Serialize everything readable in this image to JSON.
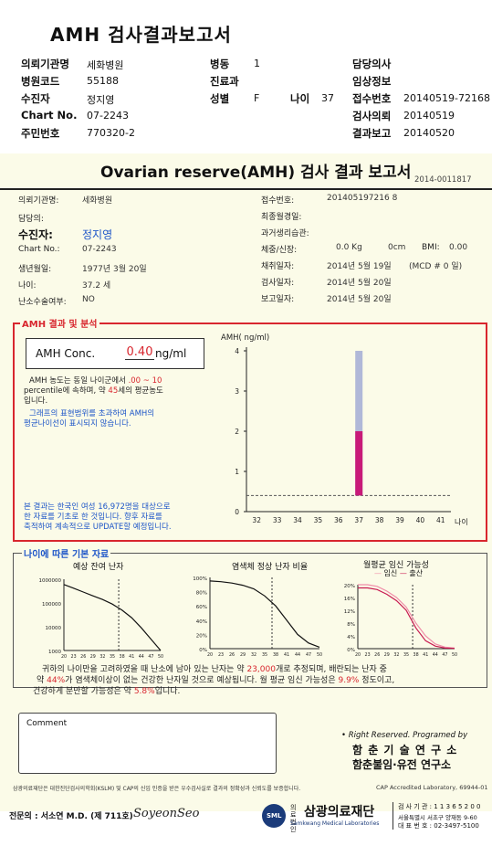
{
  "header": {
    "title": "AMH 검사결과보고서",
    "rows": [
      [
        {
          "l": "의뢰기관명",
          "v": "세화병원"
        },
        {
          "l": "병동",
          "v": "1"
        },
        {
          "l": "담당의사",
          "v": ""
        }
      ],
      [
        {
          "l": "병원코드",
          "v": "55188"
        },
        {
          "l": "진료과",
          "v": ""
        },
        {
          "l": "임상정보",
          "v": ""
        }
      ],
      [
        {
          "l": "수진자",
          "v": "정지영"
        },
        {
          "l": "성별",
          "v": "F"
        },
        {
          "l": "나이",
          "v": "37"
        },
        {
          "l": "접수번호",
          "v": "20140519-72168"
        }
      ],
      [
        {
          "l": "Chart No.",
          "v": "07-2243"
        },
        {
          "l": "검사의뢰",
          "v": "20140519"
        }
      ],
      [
        {
          "l": "주민번호",
          "v": "770320-2"
        },
        {
          "l": "결과보고",
          "v": "20140520"
        }
      ]
    ]
  },
  "report": {
    "title": "Ovarian reserve(AMH) 검사 결과 보고서",
    "number": "2014-0011817",
    "patient": {
      "hospital_label": "의뢰기관명:",
      "hospital": "세화병원",
      "doctor_label": "담당의:",
      "name_label": "수진자:",
      "name": "정지영",
      "chart_label": "Chart No.:",
      "chart": "07-2243",
      "dob_label": "생년월일:",
      "dob": "1977년 3월 20일",
      "age_label": "나이:",
      "age": "37.2 세",
      "ovary_label": "난소수술여부:",
      "ovary": "NO",
      "receipt_label": "접수번호:",
      "receipt": "201405197216 8",
      "lastmens_label": "최종월경일:",
      "pastmens_label": "과거생리습관:",
      "weight_label": "체중/신장:",
      "weight": "0.0 Kg",
      "height": "0cm",
      "bmi_label": "BMI:",
      "bmi": "0.00",
      "collect_label": "채취일자:",
      "collect": "2014년 5월 19일",
      "mcd": "(MCD # 0 일)",
      "test_label": "검사일자:",
      "test": "2014년 5월 20일",
      "report_label": "보고일자:",
      "report": "2014년 5월 20일"
    },
    "amh_section": {
      "heading": "AMH 결과 및 분석",
      "conc_label": "AMH Conc.",
      "conc_value": "0.40",
      "conc_unit": "ng/ml",
      "note1_a": "AMH 농도는 동일 나이군에서",
      "note1_range": ".00 ~ 10",
      "note1_b": "percentile에 속하며, 약",
      "note1_age": "45",
      "note1_c": "세의 평균농도",
      "note1_d": "입니다.",
      "note2_a": "그래프의 표현범위를 초과하여 AMH의",
      "note2_b": "평균나이선이 표시되지 않습니다.",
      "note3_a": "본 결과는 한국인 여성 16,972명을 대상으로",
      "note3_b": "한 자료를 기초로 한 것입니다. 향후 자료를",
      "note3_c": "축적하여 계속적으로 UPDATE할 예정입니다."
    },
    "basic_section": {
      "heading": "나이에 따른 기본 자료",
      "chart1_title": "예상 잔여 난자",
      "chart2_title": "염색체 정상 난자 비율",
      "chart3_title": "월평균 임신 가능성",
      "chart3_legend_a": "임신",
      "chart3_legend_b": "출산",
      "summary1_a": "귀하의 나이만을 고려하였을 때 난소에 남아 있는 난자는 약",
      "summary1_eggs": "23,000",
      "summary1_b": "개로 추정되며, 배란되는 난자 중",
      "summary2_a": "약",
      "summary2_pct": "44%",
      "summary2_b": "가 염색체이상이 없는 건강한 난자일 것으로 예상됩니다. 월 평균 임신 가능성은",
      "summary2_preg": "9.9%",
      "summary2_c": "정도이고,",
      "summary3_a": "건강하게 분만할 가능성은 약",
      "summary3_birth": "5.8%",
      "summary3_b": "입니다."
    },
    "comment_label": "Comment",
    "rights": "• Right Reserved. Programed by",
    "org1": "함 춘 기 술 연 구 소",
    "org2": "함춘불임·유전 연구소",
    "cert_note": "삼광의료재단은 대한진단검사의학회(KSLM) 및 CAP의 신임 인증을 받은 우수검사실로 결과의 정확성과 신뢰도를 보증합니다.",
    "cap": "CAP  Accredited  Laboratory,  69944-01"
  },
  "footer": {
    "specialist": "전문의 : 서소연 M.D. (제 711호)",
    "signature": "SoyeonSeo",
    "foundation": "삼광의료재단",
    "foundation_sub": "Samkwang Medical Laboratories",
    "foundation_tag": "의료법인",
    "logo_text": "SML",
    "institution_code": "검 사 기 관 : 1 1 3 6 5 2 0 0",
    "address": "서울특별시 서초구 양재동 9-60",
    "phone": "대 표 번 호 : 02-3497-5100"
  },
  "chart_data": [
    {
      "type": "bar",
      "title": "",
      "ylabel": "AMH( ng/ml)",
      "x": [
        32,
        33,
        34,
        35,
        36,
        37,
        38,
        39,
        40,
        41
      ],
      "xlabel_extra": "나이",
      "ylim": [
        0,
        4
      ],
      "yticks": [
        0,
        1,
        2,
        3,
        4
      ],
      "bar_age": 37,
      "bar_range": [
        0.4,
        4
      ],
      "bar_highlight": [
        0.4,
        2
      ],
      "threshold_line": 0.4,
      "colors": {
        "range": "#b0b8d8",
        "highlight": "#c81a78",
        "threshold": "#555555"
      }
    },
    {
      "type": "line",
      "title": "예상 잔여 난자",
      "x": [
        20,
        23,
        26,
        29,
        32,
        35,
        38,
        41,
        44,
        47,
        50
      ],
      "xticks": [
        "20",
        "23",
        "26",
        "29",
        "32",
        "35",
        "38",
        "41",
        "44",
        "47",
        "50"
      ],
      "ylim": [
        1000,
        1000000
      ],
      "yticks": [
        "1000000",
        "100000",
        "10000",
        "1000"
      ],
      "log_scale": true,
      "values": [
        600000,
        420000,
        290000,
        200000,
        140000,
        90000,
        50000,
        24000,
        9000,
        3000,
        1000
      ],
      "marker_age": 37,
      "colors": {
        "line": "#111111",
        "marker": "#333333"
      }
    },
    {
      "type": "line",
      "title": "염색체 정상 난자 비율",
      "x": [
        20,
        23,
        26,
        29,
        32,
        35,
        38,
        41,
        44,
        47,
        50
      ],
      "xticks": [
        "20",
        "23",
        "26",
        "29",
        "32",
        "35",
        "38",
        "41",
        "44",
        "47",
        "50"
      ],
      "ylim": [
        0,
        100
      ],
      "yticks": [
        "100%",
        "80%",
        "60%",
        "40%",
        "20%",
        "0%"
      ],
      "values": [
        95,
        94,
        92,
        89,
        84,
        74,
        60,
        40,
        20,
        8,
        2
      ],
      "marker_age": 37,
      "colors": {
        "line": "#111111",
        "marker": "#333333"
      }
    },
    {
      "type": "line",
      "title": "월평균 임신 가능성",
      "x": [
        20,
        23,
        26,
        29,
        32,
        35,
        38,
        41,
        44,
        47,
        50
      ],
      "xticks": [
        "20",
        "23",
        "26",
        "29",
        "32",
        "35",
        "38",
        "41",
        "44",
        "47",
        "50"
      ],
      "ylim": [
        0,
        20
      ],
      "yticks": [
        "20%",
        "16%",
        "12%",
        "8%",
        "4%",
        "0%"
      ],
      "series": [
        {
          "name": "임신",
          "values": [
            20,
            20,
            19.5,
            18,
            16,
            13,
            8,
            4,
            1.5,
            0.5,
            0.2
          ]
        },
        {
          "name": "출산",
          "values": [
            19,
            19,
            18.5,
            17,
            15,
            12,
            6.5,
            2.5,
            0.8,
            0.2,
            0.1
          ]
        }
      ],
      "marker_age": 37,
      "colors": {
        "pregnancy": "#f08ca8",
        "birth": "#c81a50",
        "marker": "#333333"
      }
    }
  ]
}
